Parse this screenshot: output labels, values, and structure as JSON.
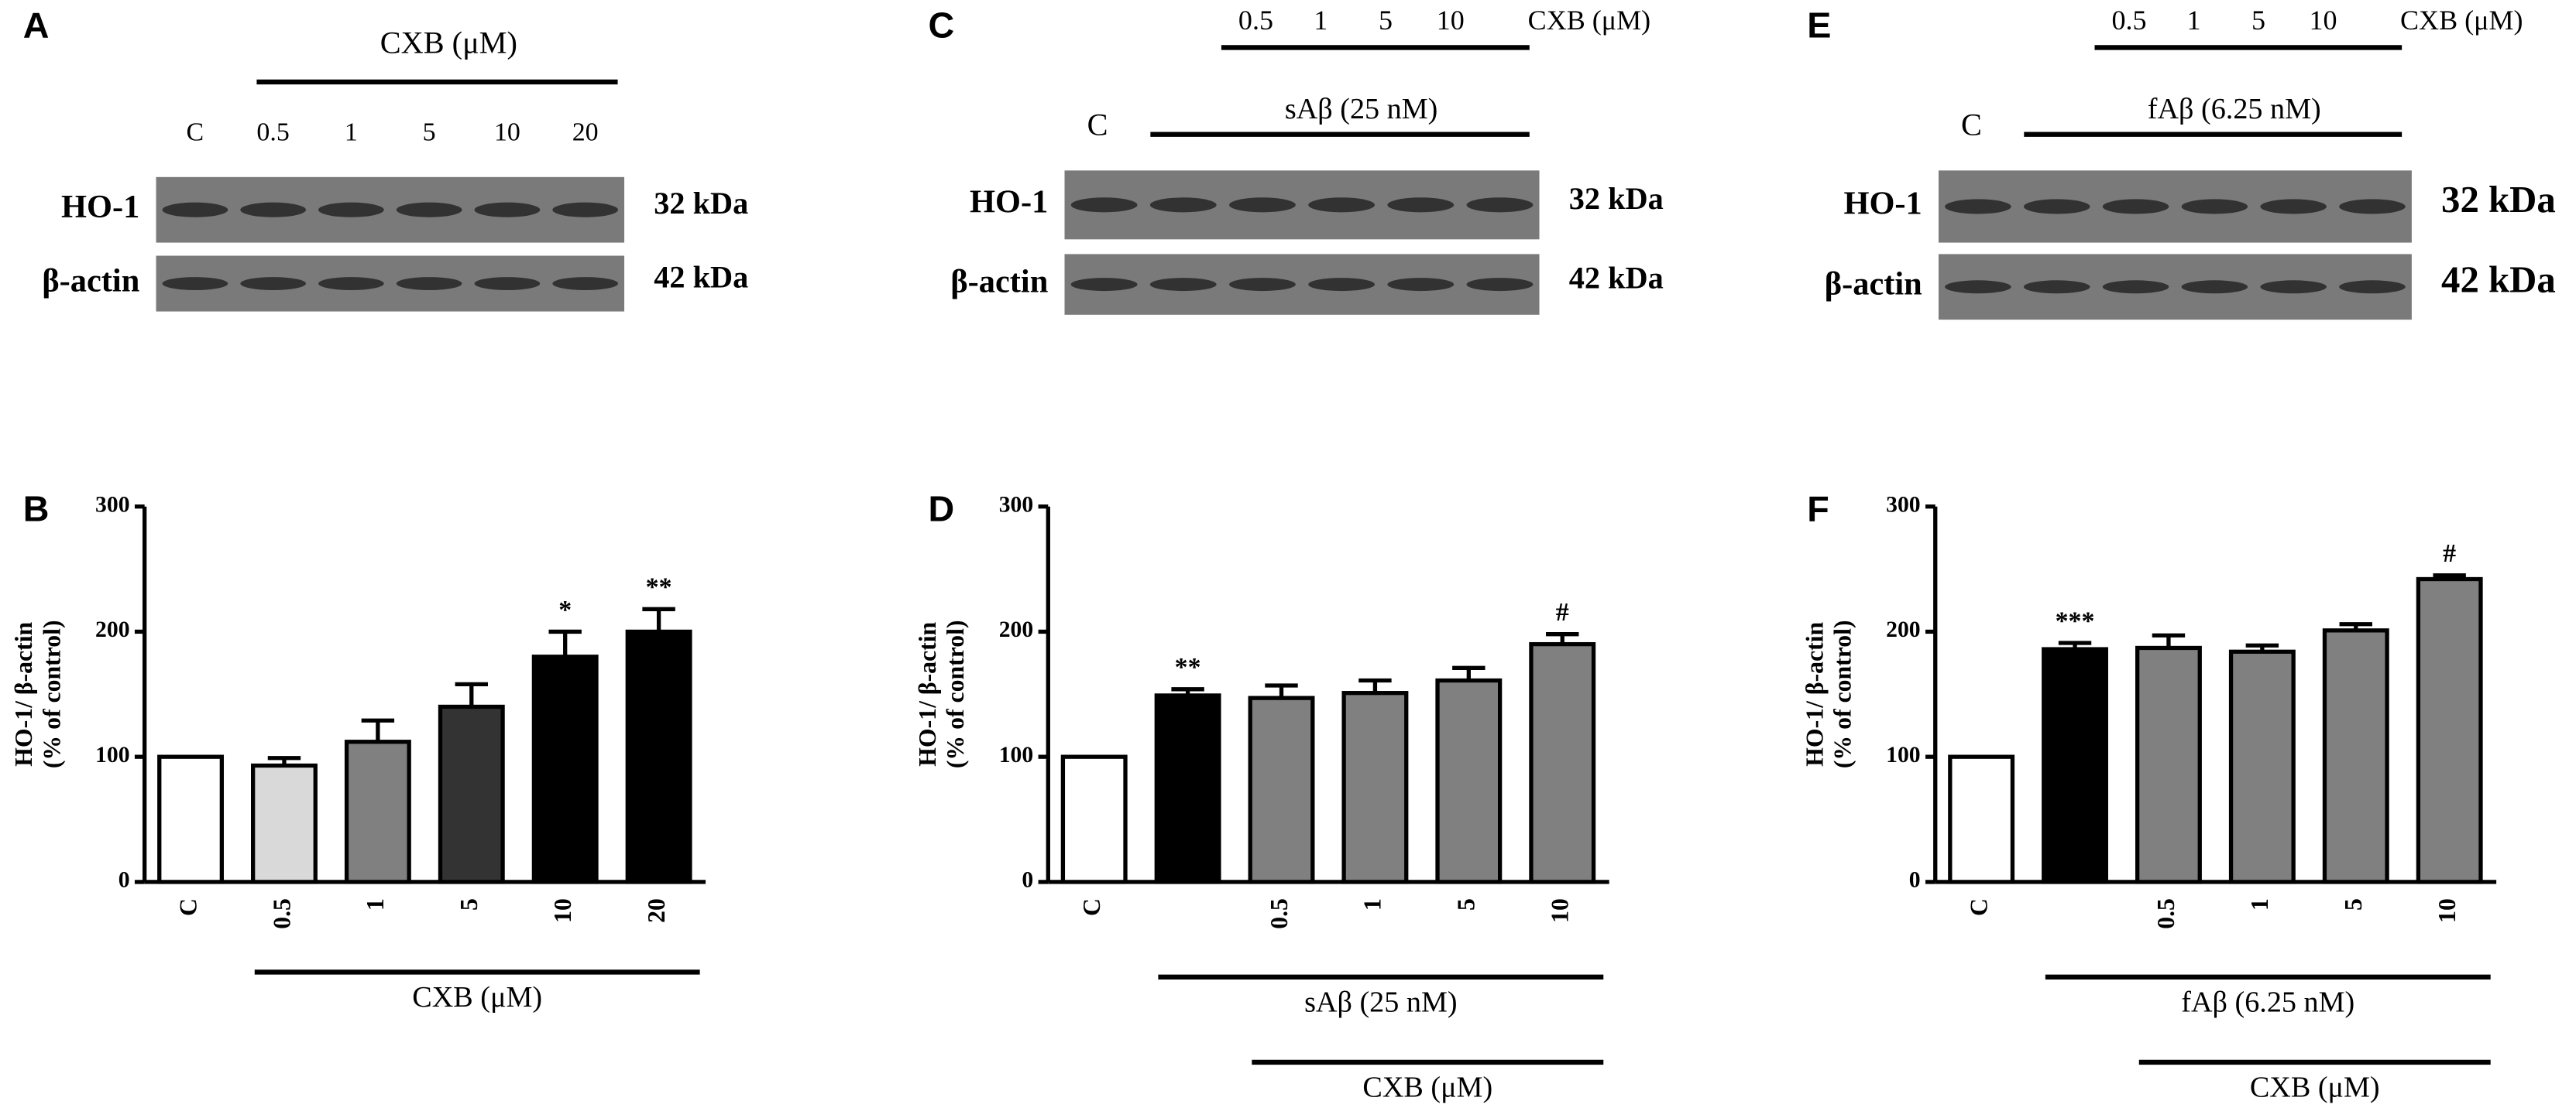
{
  "blots": [
    {
      "letter": "A",
      "treatment": "CXB (μM)",
      "lanes": [
        "C",
        "0.5",
        "1",
        "5",
        "10",
        "20"
      ],
      "rows": [
        {
          "protein": "HO-1",
          "size": "32 kDa"
        },
        {
          "protein": "β-actin",
          "size": "42 kDa"
        }
      ]
    },
    {
      "letter": "C",
      "dose_label": "CXB (μM)",
      "doses": [
        "0.5",
        "1",
        "5",
        "10"
      ],
      "control": "C",
      "treatment": "sAβ (25 nM)",
      "rows": [
        {
          "protein": "HO-1",
          "size": "32 kDa"
        },
        {
          "protein": "β-actin",
          "size": "42 kDa"
        }
      ]
    },
    {
      "letter": "E",
      "dose_label": "CXB (μM)",
      "doses": [
        "0.5",
        "1",
        "5",
        "10"
      ],
      "control": "C",
      "treatment": "fAβ (6.25 nM)",
      "rows": [
        {
          "protein": "HO-1",
          "size": "32 kDa"
        },
        {
          "protein": "β-actin",
          "size": "42 kDa"
        }
      ]
    }
  ],
  "chart_data": [
    {
      "type": "bar",
      "letter": "B",
      "ylabel": [
        "HO-1/ β-actin",
        "(% of control)"
      ],
      "categories": [
        "C",
        "0.5",
        "1",
        "5",
        "10",
        "20"
      ],
      "values": [
        100,
        93,
        112,
        140,
        180,
        200
      ],
      "errors": [
        0,
        6,
        17,
        18,
        20,
        18
      ],
      "colors": [
        "#ffffff",
        "#d9d9d9",
        "#808080",
        "#333333",
        "#000000",
        "#000000"
      ],
      "annotations": [
        null,
        null,
        null,
        null,
        "*",
        "**"
      ],
      "ylim": [
        0,
        300
      ],
      "yticks": [
        0,
        100,
        200,
        300
      ],
      "x_groups": [
        {
          "label": "CXB (μM)",
          "start": 1,
          "end": 5
        }
      ]
    },
    {
      "type": "bar",
      "letter": "D",
      "ylabel": [
        "HO-1/ β-actin",
        "(% of control)"
      ],
      "categories": [
        "C",
        null,
        "0.5",
        "1",
        "5",
        "10"
      ],
      "values": [
        100,
        149,
        147,
        151,
        161,
        190
      ],
      "errors": [
        0,
        5,
        10,
        10,
        10,
        8
      ],
      "colors": [
        "#ffffff",
        "#000000",
        "#808080",
        "#808080",
        "#808080",
        "#808080"
      ],
      "annotations": [
        null,
        "**",
        null,
        null,
        null,
        "#"
      ],
      "ylim": [
        0,
        300
      ],
      "yticks": [
        0,
        100,
        200,
        300
      ],
      "x_groups": [
        {
          "label": "sAβ (25 nM)",
          "start": 1,
          "end": 5
        },
        {
          "label": "CXB (μM)",
          "start": 2,
          "end": 5
        }
      ]
    },
    {
      "type": "bar",
      "letter": "F",
      "ylabel": [
        "HO-1/ β-actin",
        "(% of control)"
      ],
      "categories": [
        "C",
        null,
        "0.5",
        "1",
        "5",
        "10"
      ],
      "values": [
        100,
        186,
        187,
        184,
        201,
        242
      ],
      "errors": [
        0,
        5,
        10,
        5,
        5,
        3
      ],
      "colors": [
        "#ffffff",
        "#000000",
        "#808080",
        "#808080",
        "#808080",
        "#808080"
      ],
      "annotations": [
        null,
        "***",
        null,
        null,
        null,
        "#"
      ],
      "ylim": [
        0,
        300
      ],
      "yticks": [
        0,
        100,
        200,
        300
      ],
      "x_groups": [
        {
          "label": "fAβ (6.25 nM)",
          "start": 1,
          "end": 5
        },
        {
          "label": "CXB (μM)",
          "start": 2,
          "end": 5
        }
      ]
    }
  ]
}
